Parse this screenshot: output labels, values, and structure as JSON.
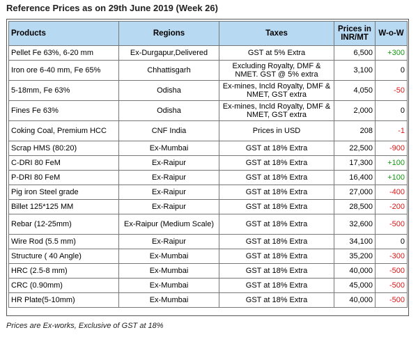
{
  "title": "Reference Prices as on 29th June 2019 (Week 26)",
  "headers": {
    "products": "Products",
    "regions": "Regions",
    "taxes": "Taxes",
    "prices": "Prices in INR/MT",
    "wow": "W-o-W"
  },
  "rows": [
    {
      "product": "Pellet Fe 63%, 6-20 mm",
      "region": "Ex-Durgapur,Delivered",
      "tax": "GST at 5% Extra",
      "price": "6,500",
      "wow": "+300",
      "trend": "pos"
    },
    {
      "product": "Iron ore 6-40 mm, Fe 65%",
      "region": "Chhattisgarh",
      "tax": "Excluding Royalty, DMF & NMET. GST @ 5% extra",
      "price": "3,100",
      "wow": "0",
      "trend": "zero"
    },
    {
      "product": "5-18mm, Fe 63%",
      "region": "Odisha",
      "tax": "Ex-mines, Incld Royalty, DMF & NMET, GST extra",
      "price": "4,050",
      "wow": "-50",
      "trend": "neg"
    },
    {
      "product": "Fines Fe 63%",
      "region": "Odisha",
      "tax": "Ex-mines, Incld Royalty, DMF & NMET, GST extra",
      "price": "2,000",
      "wow": "0",
      "trend": "zero"
    },
    {
      "product": "Coking Coal, Premium HCC",
      "region": "CNF India",
      "tax": "Prices in USD",
      "price": "208",
      "wow": "-1",
      "trend": "neg"
    },
    {
      "product": "Scrap HMS (80:20)",
      "region": "Ex-Mumbai",
      "tax": "GST at 18% Extra",
      "price": "22,500",
      "wow": "-900",
      "trend": "neg"
    },
    {
      "product": "C-DRI 80 FeM",
      "region": "Ex-Raipur",
      "tax": "GST at 18% Extra",
      "price": "17,300",
      "wow": "+100",
      "trend": "pos"
    },
    {
      "product": "P-DRI 80 FeM",
      "region": "Ex-Raipur",
      "tax": "GST at 18% Extra",
      "price": "16,400",
      "wow": "+100",
      "trend": "pos"
    },
    {
      "product": "Pig iron Steel grade",
      "region": "Ex-Raipur",
      "tax": "GST at 18% Extra",
      "price": "27,000",
      "wow": "-400",
      "trend": "neg"
    },
    {
      "product": "Billet 125*125 MM",
      "region": "Ex-Raipur",
      "tax": "GST at 18% Extra",
      "price": "28,500",
      "wow": "-200",
      "trend": "neg"
    },
    {
      "product": "Rebar (12-25mm)",
      "region": "Ex-Raipur (Medium Scale)",
      "tax": "GST at 18% Extra",
      "price": "32,600",
      "wow": "-500",
      "trend": "neg"
    },
    {
      "product": "Wire Rod (5.5 mm)",
      "region": "Ex-Raipur",
      "tax": "GST at 18% Extra",
      "price": "34,100",
      "wow": "0",
      "trend": "zero"
    },
    {
      "product": "Structure ( 40 Angle)",
      "region": "Ex-Mumbai",
      "tax": "GST at 18% Extra",
      "price": "35,200",
      "wow": "-300",
      "trend": "neg"
    },
    {
      "product": "HRC (2.5-8 mm)",
      "region": "Ex-Mumbai",
      "tax": "GST at 18% Extra",
      "price": "40,000",
      "wow": "-500",
      "trend": "neg"
    },
    {
      "product": "CRC (0.90mm)",
      "region": "Ex-Mumbai",
      "tax": "GST at 18% Extra",
      "price": "45,000",
      "wow": "-500",
      "trend": "neg"
    },
    {
      "product": "HR Plate(5-10mm)",
      "region": "Ex-Mumbai",
      "tax": "GST at 18% Extra",
      "price": "40,000",
      "wow": "-500",
      "trend": "neg"
    }
  ],
  "colors": {
    "header_bg": "#b8d9f2",
    "positive": "#119a11",
    "negative": "#e01616"
  },
  "footnote": "Prices are Ex-works, Exclusive of GST at 18%"
}
